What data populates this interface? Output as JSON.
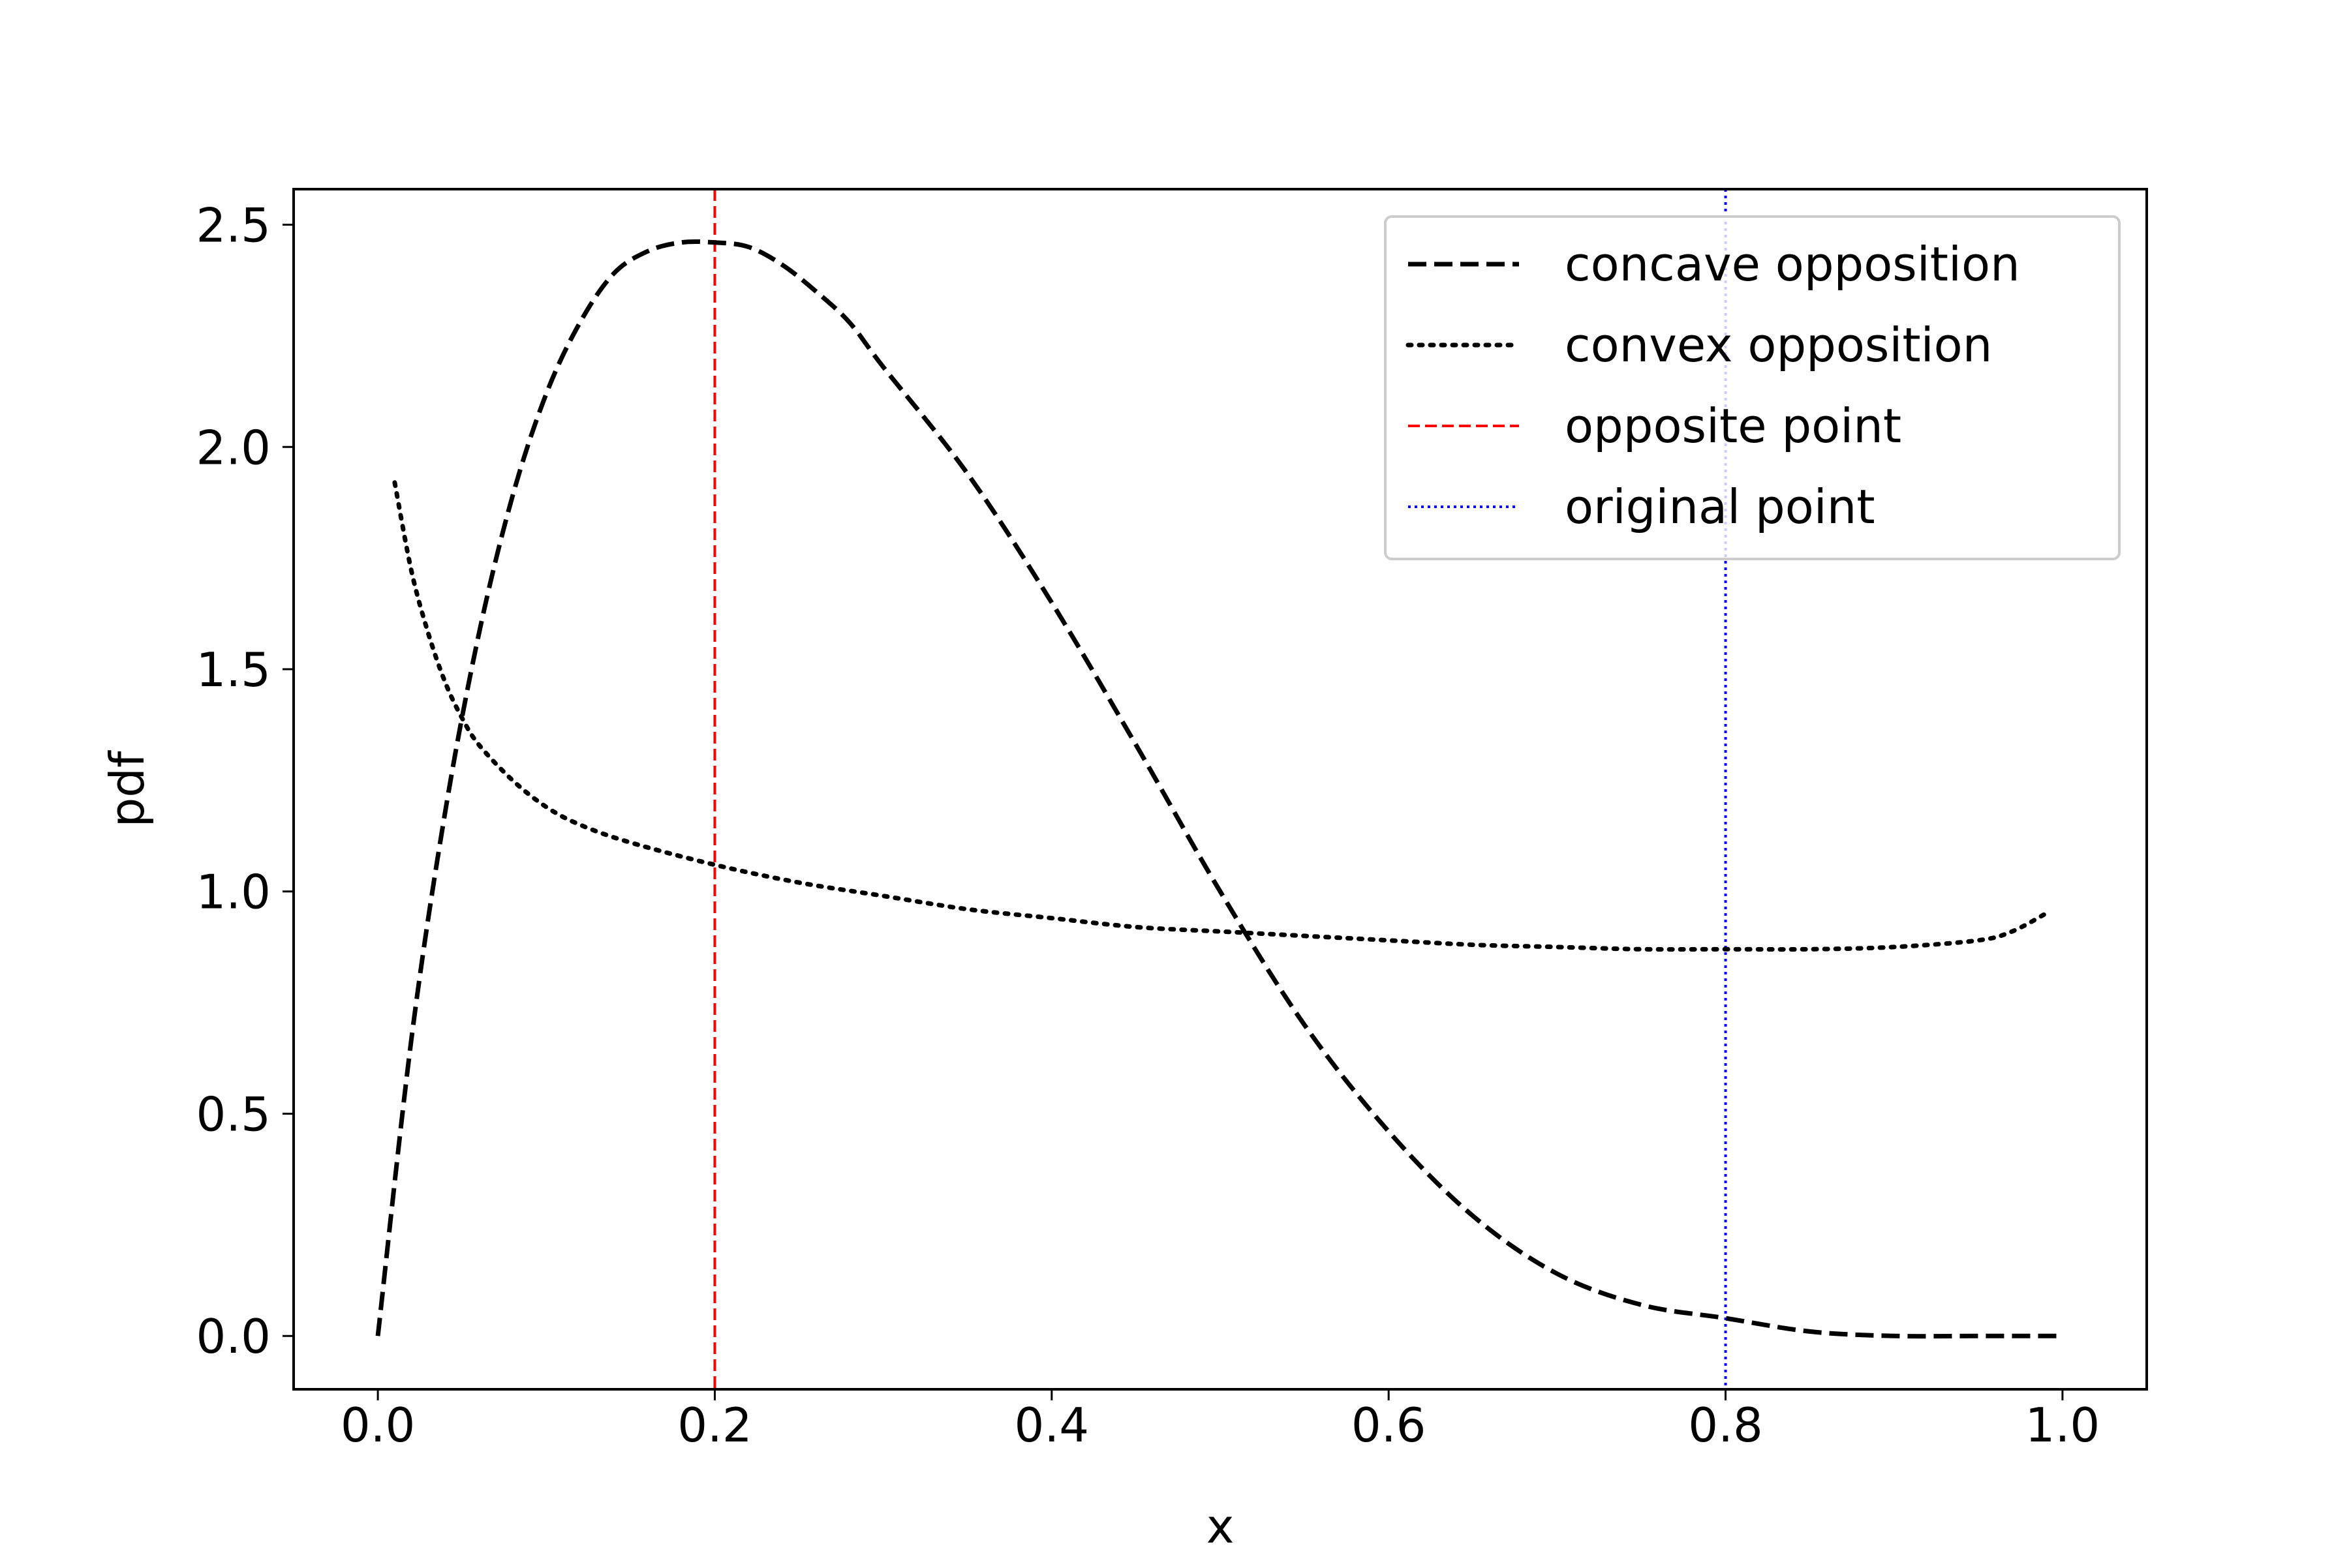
{
  "chart_data": {
    "type": "line",
    "title": "",
    "xlabel": "x",
    "ylabel": "pdf",
    "xlim": [
      -0.05,
      1.05
    ],
    "ylim": [
      -0.12,
      2.58
    ],
    "xticks": [
      0.0,
      0.2,
      0.4,
      0.6,
      0.8,
      1.0
    ],
    "xtick_labels": [
      "0.0",
      "0.2",
      "0.4",
      "0.6",
      "0.8",
      "1.0"
    ],
    "yticks": [
      0.0,
      0.5,
      1.0,
      1.5,
      2.0,
      2.5
    ],
    "ytick_labels": [
      "0.0",
      "0.5",
      "1.0",
      "1.5",
      "2.0",
      "2.5"
    ],
    "grid": false,
    "legend_position": "top-right",
    "series": [
      {
        "name": "concave opposition",
        "style": "dashed",
        "color": "#000000",
        "x": [
          0.0,
          0.02,
          0.04,
          0.06,
          0.08,
          0.1,
          0.12,
          0.14,
          0.16,
          0.18,
          0.2,
          0.22,
          0.24,
          0.26,
          0.28,
          0.3,
          0.35,
          0.4,
          0.45,
          0.5,
          0.55,
          0.6,
          0.65,
          0.7,
          0.75,
          0.8,
          0.85,
          0.9,
          0.95,
          1.0
        ],
        "y": [
          0.0,
          0.67,
          1.18,
          1.58,
          1.89,
          2.12,
          2.28,
          2.39,
          2.44,
          2.46,
          2.46,
          2.45,
          2.41,
          2.35,
          2.28,
          2.18,
          1.94,
          1.65,
          1.33,
          1.0,
          0.7,
          0.46,
          0.27,
          0.14,
          0.07,
          0.04,
          0.01,
          0.0,
          0.0,
          0.0
        ]
      },
      {
        "name": "convex opposition",
        "style": "dotted",
        "color": "#000000",
        "x": [
          0.01,
          0.02,
          0.03,
          0.04,
          0.05,
          0.06,
          0.08,
          0.1,
          0.12,
          0.15,
          0.2,
          0.25,
          0.3,
          0.35,
          0.4,
          0.45,
          0.5,
          0.55,
          0.6,
          0.65,
          0.7,
          0.75,
          0.8,
          0.85,
          0.9,
          0.95,
          0.97,
          0.99
        ],
        "y": [
          1.92,
          1.72,
          1.58,
          1.47,
          1.39,
          1.33,
          1.25,
          1.19,
          1.15,
          1.11,
          1.06,
          1.02,
          0.99,
          0.96,
          0.94,
          0.92,
          0.91,
          0.9,
          0.89,
          0.88,
          0.875,
          0.87,
          0.87,
          0.87,
          0.875,
          0.89,
          0.91,
          0.95
        ]
      }
    ],
    "vlines": [
      {
        "name": "opposite point",
        "x": 0.2,
        "style": "dashed",
        "color": "#ff0000"
      },
      {
        "name": "original point",
        "x": 0.8,
        "style": "dotted",
        "color": "#0000ff"
      }
    ]
  }
}
